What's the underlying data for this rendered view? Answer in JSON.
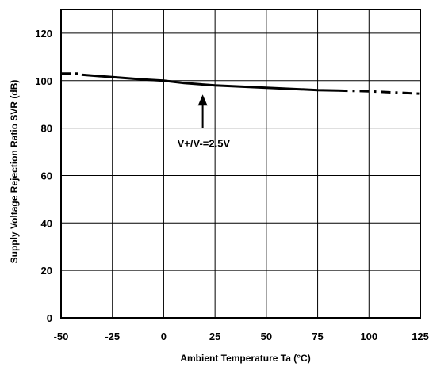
{
  "chart_data": {
    "type": "line",
    "title": "",
    "xlabel": "Ambient Temperature Ta  (°C)",
    "ylabel": "Supply Voltage Rejection Ratio  SVR  (dB)",
    "xlim": [
      -50,
      125
    ],
    "ylim": [
      0,
      130
    ],
    "xticks": [
      -50,
      -25,
      0,
      25,
      50,
      75,
      100,
      125
    ],
    "yticks": [
      0,
      20,
      40,
      60,
      80,
      100,
      120
    ],
    "grid": true,
    "series": [
      {
        "style": "solid",
        "x": [
          -40,
          -25,
          -10,
          0,
          10,
          25,
          50,
          75,
          85
        ],
        "y": [
          102.5,
          101.5,
          100.5,
          100,
          99,
          98,
          97,
          96,
          95.8
        ]
      },
      {
        "style": "dashed",
        "x": [
          -50,
          -40
        ],
        "y": [
          103,
          103
        ]
      },
      {
        "style": "dashed",
        "x": [
          85,
          100,
          125
        ],
        "y": [
          95.8,
          95.5,
          94.5
        ]
      }
    ],
    "annotations": [
      {
        "text": "V+/V-=2.5V",
        "arrow_to": [
          19,
          97.5
        ]
      }
    ]
  }
}
